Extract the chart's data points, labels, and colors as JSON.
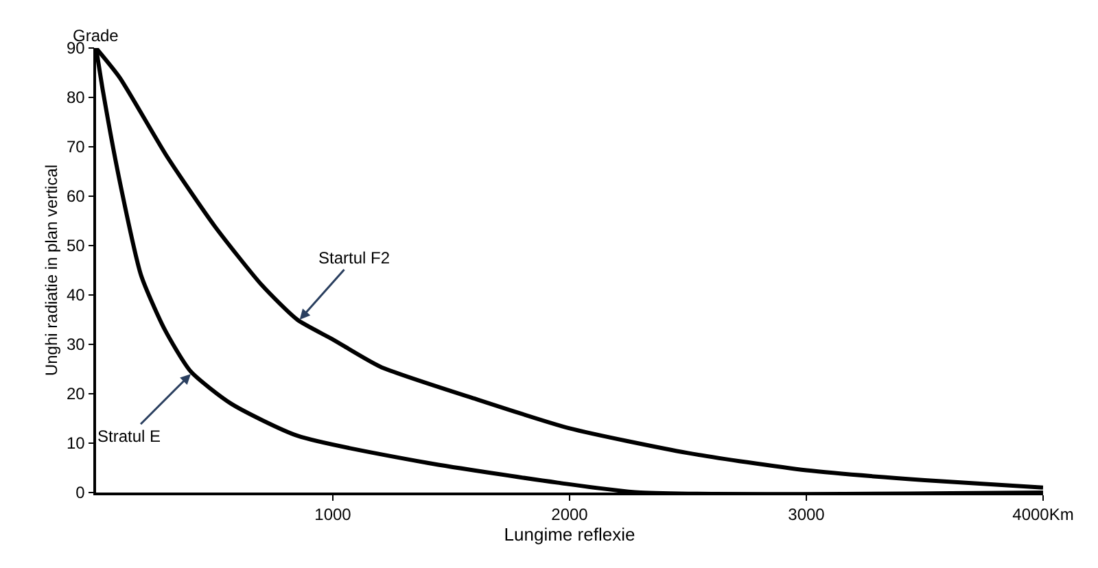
{
  "chart_data": {
    "type": "line",
    "xlabel": "Lungime reflexie",
    "ylabel": "Unghi radiatie in plan vertical",
    "xlim": [
      0,
      4000
    ],
    "ylim": [
      0,
      90
    ],
    "xticks": [
      1000,
      2000,
      3000,
      {
        "value": 4000,
        "label": "4000Km"
      }
    ],
    "yticks": [
      0,
      10,
      20,
      30,
      40,
      50,
      60,
      70,
      80,
      90
    ],
    "marker": "none",
    "line_style": "solid",
    "series": [
      {
        "color": "#000000",
        "x": [
          0,
          100,
          300,
          500,
          700,
          850,
          1000,
          1200,
          1600,
          2000,
          2500,
          3000,
          3500,
          4000
        ],
        "values": [
          90,
          84,
          68,
          54,
          42,
          35,
          31,
          25.5,
          19,
          13,
          8,
          4.5,
          2.5,
          1
        ]
      },
      {
        "color": "#000000",
        "x": [
          0,
          30,
          100,
          190,
          290,
          400,
          570,
          850,
          1400,
          1950,
          2300,
          4000
        ],
        "values": [
          90,
          81,
          63,
          44,
          33,
          24.5,
          18,
          11.5,
          6,
          2,
          0,
          0
        ]
      }
    ],
    "annotations": [
      "Grade",
      {
        "text": "Startul F2",
        "x": 860,
        "y": 35
      },
      {
        "text": "Stratul E",
        "x": 400,
        "y": 24
      }
    ]
  }
}
